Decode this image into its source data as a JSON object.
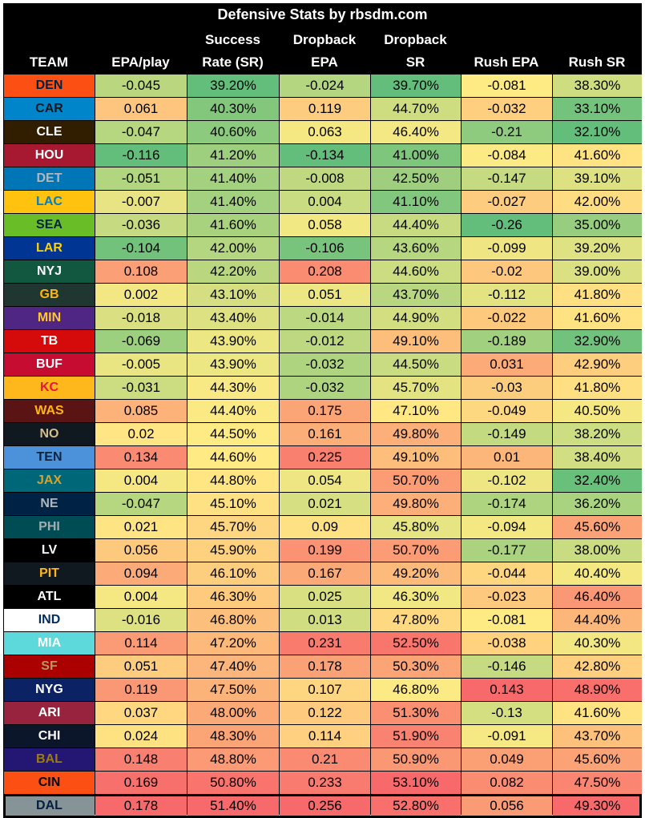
{
  "chart_data": {
    "type": "table",
    "title": "Defensive Stats by rbsdm.com",
    "columns": [
      {
        "key": "team",
        "label": [
          "TEAM"
        ]
      },
      {
        "key": "epa",
        "label": [
          "EPA/play"
        ]
      },
      {
        "key": "sr",
        "label": [
          "Success",
          "Rate (SR)"
        ]
      },
      {
        "key": "db_epa",
        "label": [
          "Dropback",
          "EPA"
        ]
      },
      {
        "key": "db_sr",
        "label": [
          "Dropback",
          "SR"
        ]
      },
      {
        "key": "rush_epa",
        "label": [
          "Rush EPA"
        ]
      },
      {
        "key": "rush_sr",
        "label": [
          "Rush SR"
        ]
      }
    ],
    "rows": [
      {
        "team": "DEN",
        "bg": "#FB4F14",
        "fg": "#002244",
        "epa": -0.045,
        "sr": "39.20%",
        "db_epa": -0.024,
        "db_sr": "39.70%",
        "rush_epa": -0.081,
        "rush_sr": "38.30%"
      },
      {
        "team": "CAR",
        "bg": "#0085CA",
        "fg": "#101820",
        "epa": 0.061,
        "sr": "40.30%",
        "db_epa": 0.119,
        "db_sr": "44.70%",
        "rush_epa": -0.032,
        "rush_sr": "33.10%"
      },
      {
        "team": "CLE",
        "bg": "#311D00",
        "fg": "#FFFFFF",
        "epa": -0.047,
        "sr": "40.60%",
        "db_epa": 0.063,
        "db_sr": "46.40%",
        "rush_epa": -0.21,
        "rush_sr": "32.10%"
      },
      {
        "team": "HOU",
        "bg": "#A71930",
        "fg": "#FFFFFF",
        "epa": -0.116,
        "sr": "41.20%",
        "db_epa": -0.134,
        "db_sr": "41.00%",
        "rush_epa": -0.084,
        "rush_sr": "41.60%"
      },
      {
        "team": "DET",
        "bg": "#0076B6",
        "fg": "#B0B7BC",
        "epa": -0.051,
        "sr": "41.40%",
        "db_epa": -0.008,
        "db_sr": "42.50%",
        "rush_epa": -0.147,
        "rush_sr": "39.10%"
      },
      {
        "team": "LAC",
        "bg": "#FFC20E",
        "fg": "#0080C6",
        "epa": -0.007,
        "sr": "41.40%",
        "db_epa": 0.004,
        "db_sr": "41.10%",
        "rush_epa": -0.027,
        "rush_sr": "42.00%"
      },
      {
        "team": "SEA",
        "bg": "#69BE28",
        "fg": "#002244",
        "epa": -0.036,
        "sr": "41.60%",
        "db_epa": 0.058,
        "db_sr": "44.40%",
        "rush_epa": -0.26,
        "rush_sr": "35.00%"
      },
      {
        "team": "LAR",
        "bg": "#003594",
        "fg": "#FFD100",
        "epa": -0.104,
        "sr": "42.00%",
        "db_epa": -0.106,
        "db_sr": "43.60%",
        "rush_epa": -0.099,
        "rush_sr": "39.20%"
      },
      {
        "team": "NYJ",
        "bg": "#125740",
        "fg": "#FFFFFF",
        "epa": 0.108,
        "sr": "42.20%",
        "db_epa": 0.208,
        "db_sr": "44.60%",
        "rush_epa": -0.02,
        "rush_sr": "39.00%"
      },
      {
        "team": "GB",
        "bg": "#203731",
        "fg": "#FFB612",
        "epa": 0.002,
        "sr": "43.10%",
        "db_epa": 0.051,
        "db_sr": "43.70%",
        "rush_epa": -0.112,
        "rush_sr": "41.80%"
      },
      {
        "team": "MIN",
        "bg": "#4F2683",
        "fg": "#FFC62F",
        "epa": -0.018,
        "sr": "43.40%",
        "db_epa": -0.014,
        "db_sr": "44.90%",
        "rush_epa": -0.022,
        "rush_sr": "41.60%"
      },
      {
        "team": "TB",
        "bg": "#D50A0A",
        "fg": "#FFFFFF",
        "epa": -0.069,
        "sr": "43.90%",
        "db_epa": -0.012,
        "db_sr": "49.10%",
        "rush_epa": -0.189,
        "rush_sr": "32.90%"
      },
      {
        "team": "BUF",
        "bg": "#C60C30",
        "fg": "#FFFFFF",
        "epa": -0.005,
        "sr": "43.90%",
        "db_epa": -0.032,
        "db_sr": "44.50%",
        "rush_epa": 0.031,
        "rush_sr": "42.90%"
      },
      {
        "team": "KC",
        "bg": "#FFB81C",
        "fg": "#E31837",
        "epa": -0.031,
        "sr": "44.30%",
        "db_epa": -0.032,
        "db_sr": "45.70%",
        "rush_epa": -0.03,
        "rush_sr": "41.80%"
      },
      {
        "team": "WAS",
        "bg": "#5A1414",
        "fg": "#FFB612",
        "epa": 0.085,
        "sr": "44.40%",
        "db_epa": 0.175,
        "db_sr": "47.10%",
        "rush_epa": -0.049,
        "rush_sr": "40.50%"
      },
      {
        "team": "NO",
        "bg": "#101820",
        "fg": "#D3BC8D",
        "epa": 0.02,
        "sr": "44.50%",
        "db_epa": 0.161,
        "db_sr": "49.80%",
        "rush_epa": -0.149,
        "rush_sr": "38.20%"
      },
      {
        "team": "TEN",
        "bg": "#4B92DB",
        "fg": "#0C2340",
        "epa": 0.134,
        "sr": "44.60%",
        "db_epa": 0.225,
        "db_sr": "49.10%",
        "rush_epa": 0.01,
        "rush_sr": "38.40%"
      },
      {
        "team": "JAX",
        "bg": "#006778",
        "fg": "#D7A22A",
        "epa": 0.004,
        "sr": "44.80%",
        "db_epa": 0.054,
        "db_sr": "50.70%",
        "rush_epa": -0.102,
        "rush_sr": "32.40%"
      },
      {
        "team": "NE",
        "bg": "#002244",
        "fg": "#B0B7BC",
        "epa": -0.047,
        "sr": "45.10%",
        "db_epa": 0.021,
        "db_sr": "49.80%",
        "rush_epa": -0.174,
        "rush_sr": "36.20%"
      },
      {
        "team": "PHI",
        "bg": "#004C54",
        "fg": "#A5ACAF",
        "epa": 0.021,
        "sr": "45.70%",
        "db_epa": 0.09,
        "db_sr": "45.80%",
        "rush_epa": -0.094,
        "rush_sr": "45.60%"
      },
      {
        "team": "LV",
        "bg": "#000000",
        "fg": "#FFFFFF",
        "epa": 0.056,
        "sr": "45.90%",
        "db_epa": 0.199,
        "db_sr": "50.70%",
        "rush_epa": -0.177,
        "rush_sr": "38.00%"
      },
      {
        "team": "PIT",
        "bg": "#101820",
        "fg": "#FFB612",
        "epa": 0.094,
        "sr": "46.10%",
        "db_epa": 0.167,
        "db_sr": "49.20%",
        "rush_epa": -0.044,
        "rush_sr": "40.40%"
      },
      {
        "team": "ATL",
        "bg": "#000000",
        "fg": "#FFFFFF",
        "epa": 0.004,
        "sr": "46.30%",
        "db_epa": 0.025,
        "db_sr": "46.30%",
        "rush_epa": -0.023,
        "rush_sr": "46.40%"
      },
      {
        "team": "IND",
        "bg": "#FFFFFF",
        "fg": "#002C5F",
        "epa": -0.016,
        "sr": "46.80%",
        "db_epa": 0.013,
        "db_sr": "47.80%",
        "rush_epa": -0.081,
        "rush_sr": "44.40%"
      },
      {
        "team": "MIA",
        "bg": "#5ED9DB",
        "fg": "#FFFFFF",
        "epa": 0.114,
        "sr": "47.20%",
        "db_epa": 0.231,
        "db_sr": "52.50%",
        "rush_epa": -0.038,
        "rush_sr": "40.30%"
      },
      {
        "team": "SF",
        "bg": "#AA0000",
        "fg": "#B3995D",
        "epa": 0.051,
        "sr": "47.40%",
        "db_epa": 0.178,
        "db_sr": "50.30%",
        "rush_epa": -0.146,
        "rush_sr": "42.80%"
      },
      {
        "team": "NYG",
        "bg": "#0B2265",
        "fg": "#FFFFFF",
        "epa": 0.119,
        "sr": "47.50%",
        "db_epa": 0.107,
        "db_sr": "46.80%",
        "rush_epa": 0.143,
        "rush_sr": "48.90%"
      },
      {
        "team": "ARI",
        "bg": "#97233F",
        "fg": "#FFFFFF",
        "epa": 0.037,
        "sr": "48.00%",
        "db_epa": 0.122,
        "db_sr": "51.30%",
        "rush_epa": -0.13,
        "rush_sr": "41.60%"
      },
      {
        "team": "CHI",
        "bg": "#0B162A",
        "fg": "#FFFFFF",
        "epa": 0.024,
        "sr": "48.30%",
        "db_epa": 0.114,
        "db_sr": "51.90%",
        "rush_epa": -0.091,
        "rush_sr": "43.70%"
      },
      {
        "team": "BAL",
        "bg": "#241773",
        "fg": "#9E7C0C",
        "epa": 0.148,
        "sr": "48.80%",
        "db_epa": 0.21,
        "db_sr": "50.90%",
        "rush_epa": 0.049,
        "rush_sr": "45.60%"
      },
      {
        "team": "CIN",
        "bg": "#FB4F14",
        "fg": "#000000",
        "epa": 0.169,
        "sr": "50.80%",
        "db_epa": 0.233,
        "db_sr": "53.10%",
        "rush_epa": 0.082,
        "rush_sr": "47.50%"
      },
      {
        "team": "DAL",
        "bg": "#869397",
        "fg": "#041E42",
        "epa": 0.178,
        "sr": "51.40%",
        "db_epa": 0.256,
        "db_sr": "52.80%",
        "rush_epa": 0.056,
        "rush_sr": "49.30%"
      }
    ],
    "highlight_row": "DAL",
    "scale": {
      "low": "#63BE7B",
      "mid": "#FFEB84",
      "high": "#F8696B",
      "lower_is_better": true
    }
  }
}
